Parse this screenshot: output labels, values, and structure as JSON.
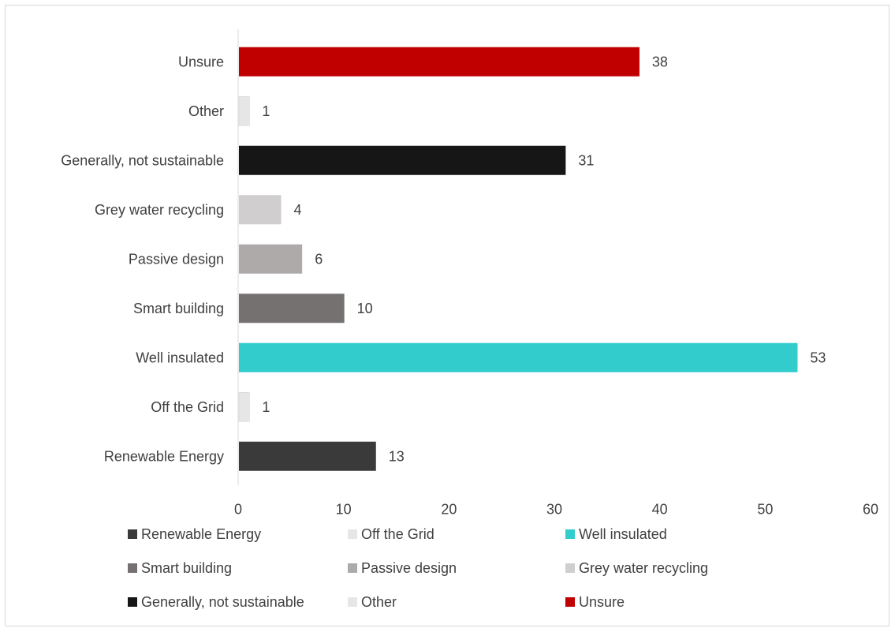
{
  "chart_data": {
    "type": "bar",
    "orientation": "horizontal",
    "title": "",
    "xlabel": "",
    "ylabel": "",
    "xlim": [
      0,
      60
    ],
    "x_ticks": [
      0,
      10,
      20,
      30,
      40,
      50,
      60
    ],
    "grid": false,
    "legend_position": "bottom",
    "categories": [
      "Renewable Energy",
      "Off the Grid",
      "Well insulated",
      "Smart building",
      "Passive design",
      "Grey water recycling",
      "Generally, not sustainable",
      "Other",
      "Unsure"
    ],
    "values": [
      13,
      1,
      53,
      10,
      6,
      4,
      31,
      1,
      38
    ],
    "colors": [
      "#3a3a3a",
      "#e6e6e6",
      "#33cccc",
      "#767171",
      "#aeaaaa",
      "#d0cece",
      "#161616",
      "#e7e6e6",
      "#c00000"
    ]
  }
}
